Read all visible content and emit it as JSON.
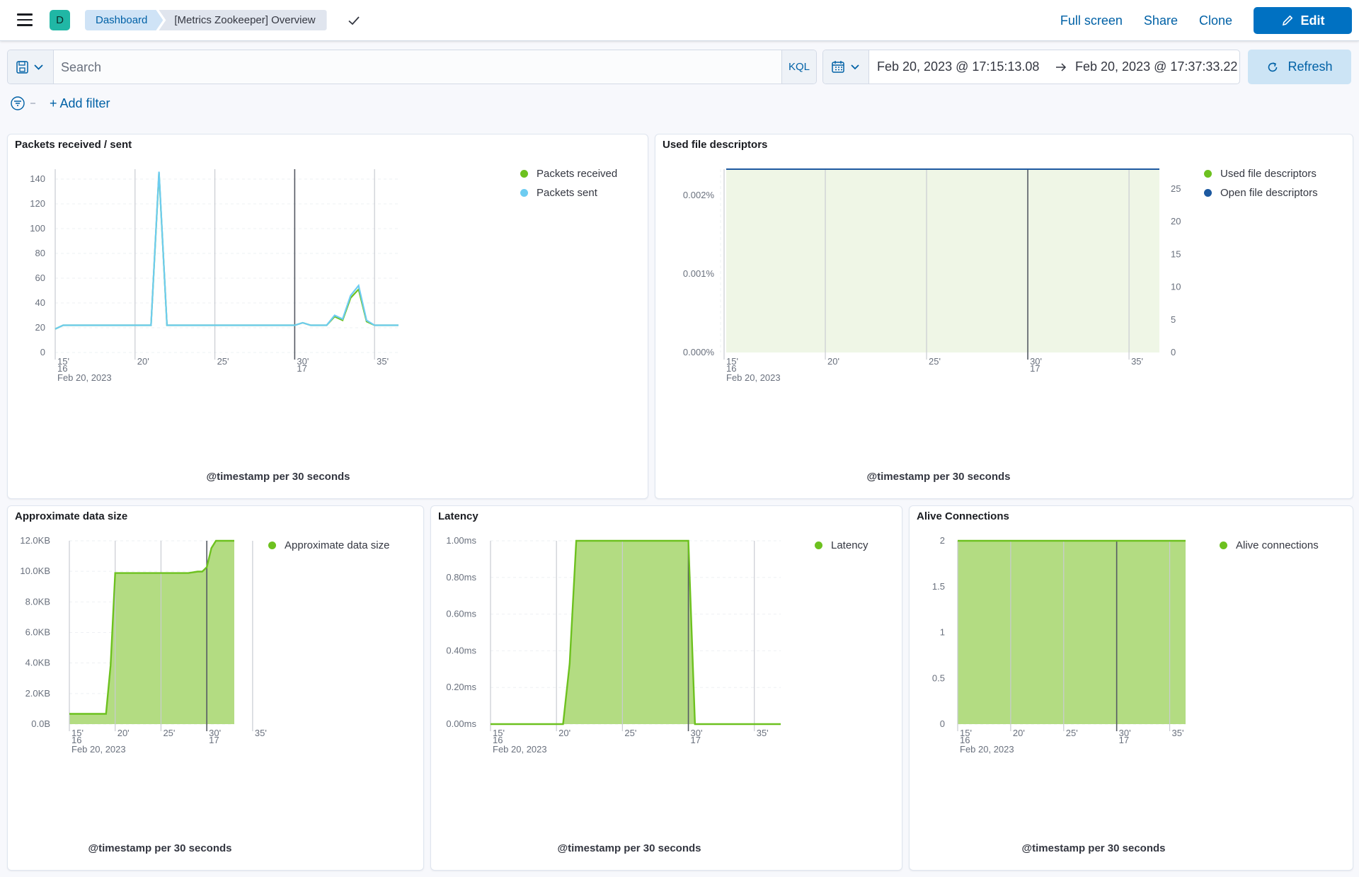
{
  "header": {
    "avatar_letter": "D",
    "breadcrumb_root": "Dashboard",
    "breadcrumb_current": "[Metrics Zookeeper] Overview",
    "full_screen": "Full screen",
    "share": "Share",
    "clone": "Clone",
    "edit": "Edit"
  },
  "query": {
    "search_placeholder": "Search",
    "language": "KQL",
    "date_start": "Feb 20, 2023 @ 17:15:13.08",
    "date_end": "Feb 20, 2023 @ 17:37:33.22",
    "refresh": "Refresh",
    "add_filter": "+ Add filter"
  },
  "colors": {
    "green": "#54b399",
    "lime": "#6dc11f",
    "cyan": "#6dccf1",
    "navy": "#1d59a0",
    "blue_button": "#0071c2",
    "link": "#0061a6"
  },
  "chart_data": [
    {
      "id": "packets",
      "title": "Packets received / sent",
      "type": "line",
      "xlabel": "@timestamp per 30 seconds",
      "x_date_label": "Feb 20, 2023",
      "x_ticks": [
        "15'\n16",
        "20'",
        "25'",
        "30'\n17",
        "35'"
      ],
      "ylim": [
        0,
        145
      ],
      "y_ticks": [
        "0",
        "20",
        "40",
        "60",
        "80",
        "100",
        "120",
        "140"
      ],
      "x": [
        0,
        0.5,
        1,
        1.5,
        2,
        2.5,
        3,
        3.5,
        4,
        4.5,
        5,
        5.5,
        6,
        6.5,
        7,
        7.5,
        8,
        8.5,
        9,
        9.5,
        10,
        10.5,
        11,
        11.5,
        12,
        12.5,
        13,
        13.5,
        14,
        14.5,
        15,
        15.5,
        16,
        16.5,
        17,
        17.5,
        18,
        18.5,
        19,
        19.5,
        20,
        20.5,
        21,
        21.5
      ],
      "series": [
        {
          "name": "Packets received",
          "color": "#6dc11f",
          "values": [
            19,
            22,
            22,
            22,
            22,
            22,
            22,
            22,
            22,
            22,
            22,
            22,
            22,
            145,
            22,
            22,
            22,
            22,
            22,
            22,
            22,
            22,
            22,
            22,
            22,
            22,
            22,
            22,
            22,
            22,
            22,
            24,
            22,
            22,
            22,
            29,
            26,
            44,
            51,
            25,
            22,
            22,
            22,
            22
          ]
        },
        {
          "name": "Packets sent",
          "color": "#6dccf1",
          "values": [
            19,
            22,
            22,
            22,
            22,
            22,
            22,
            22,
            22,
            22,
            22,
            22,
            22,
            146,
            22,
            22,
            22,
            22,
            22,
            22,
            22,
            22,
            22,
            22,
            22,
            22,
            22,
            22,
            22,
            22,
            22,
            24,
            22,
            22,
            22,
            30,
            27,
            46,
            54,
            26,
            22,
            22,
            22,
            22
          ]
        }
      ]
    },
    {
      "id": "fd",
      "title": "Used file descriptors",
      "type": "area",
      "xlabel": "@timestamp per 30 seconds",
      "x_date_label": "Feb 20, 2023",
      "x_ticks": [
        "15'\n16",
        "20'",
        "25'",
        "30'\n17",
        "35'"
      ],
      "y_left_ticks": [
        "0.000%",
        "0.001%",
        "0.002%"
      ],
      "y_right_ticks": [
        "0",
        "5",
        "10",
        "15",
        "20",
        "25"
      ],
      "ylim_right": [
        0,
        28
      ],
      "series": [
        {
          "name": "Used file descriptors",
          "color": "#6dc11f",
          "values": [
            0,
            0
          ]
        },
        {
          "name": "Open file descriptors",
          "color": "#1d59a0",
          "values": [
            28,
            28
          ]
        }
      ]
    },
    {
      "id": "datasize",
      "title": "Approximate data size",
      "type": "area",
      "xlabel": "@timestamp per 30 seconds",
      "x_date_label": "Feb 20, 2023",
      "x_ticks": [
        "15'\n16",
        "20'",
        "25'",
        "30'\n17",
        "35'"
      ],
      "ylim": [
        0,
        12.5
      ],
      "y_ticks": [
        "0.0B",
        "2.0KB",
        "4.0KB",
        "6.0KB",
        "8.0KB",
        "10.0KB",
        "12.0KB"
      ],
      "x": [
        0,
        4,
        4.5,
        5,
        5.5,
        13,
        14,
        14.5,
        15,
        15.5,
        16,
        17,
        18
      ],
      "series": [
        {
          "name": "Approximate data size",
          "color": "#6dc11f",
          "values": [
            0.7,
            0.7,
            4.0,
            10.3,
            10.3,
            10.3,
            10.4,
            10.4,
            10.7,
            12.0,
            12.5,
            12.5,
            12.5
          ]
        }
      ]
    },
    {
      "id": "latency",
      "title": "Latency",
      "type": "area",
      "xlabel": "@timestamp per 30 seconds",
      "x_date_label": "Feb 20, 2023",
      "x_ticks": [
        "15'\n16",
        "20'",
        "25'",
        "30'\n17",
        "35'"
      ],
      "ylim": [
        0,
        1.0
      ],
      "y_ticks": [
        "0.00ms",
        "0.20ms",
        "0.40ms",
        "0.60ms",
        "0.80ms",
        "1.00ms"
      ],
      "x": [
        0,
        5.5,
        6,
        6.5,
        15,
        15.5,
        22
      ],
      "series": [
        {
          "name": "Latency",
          "color": "#6dc11f",
          "values": [
            0,
            0,
            0.33,
            1.0,
            1.0,
            0,
            0
          ]
        }
      ]
    },
    {
      "id": "alive",
      "title": "Alive Connections",
      "type": "area",
      "xlabel": "@timestamp per 30 seconds",
      "x_date_label": "Feb 20, 2023",
      "x_ticks": [
        "15'\n16",
        "20'",
        "25'",
        "30'\n17",
        "35'"
      ],
      "ylim": [
        0,
        2
      ],
      "y_ticks": [
        "0",
        "0.5",
        "1",
        "1.5",
        "2"
      ],
      "x": [
        0,
        21.5
      ],
      "series": [
        {
          "name": "Alive connections",
          "color": "#6dc11f",
          "values": [
            2,
            2
          ]
        }
      ]
    }
  ]
}
